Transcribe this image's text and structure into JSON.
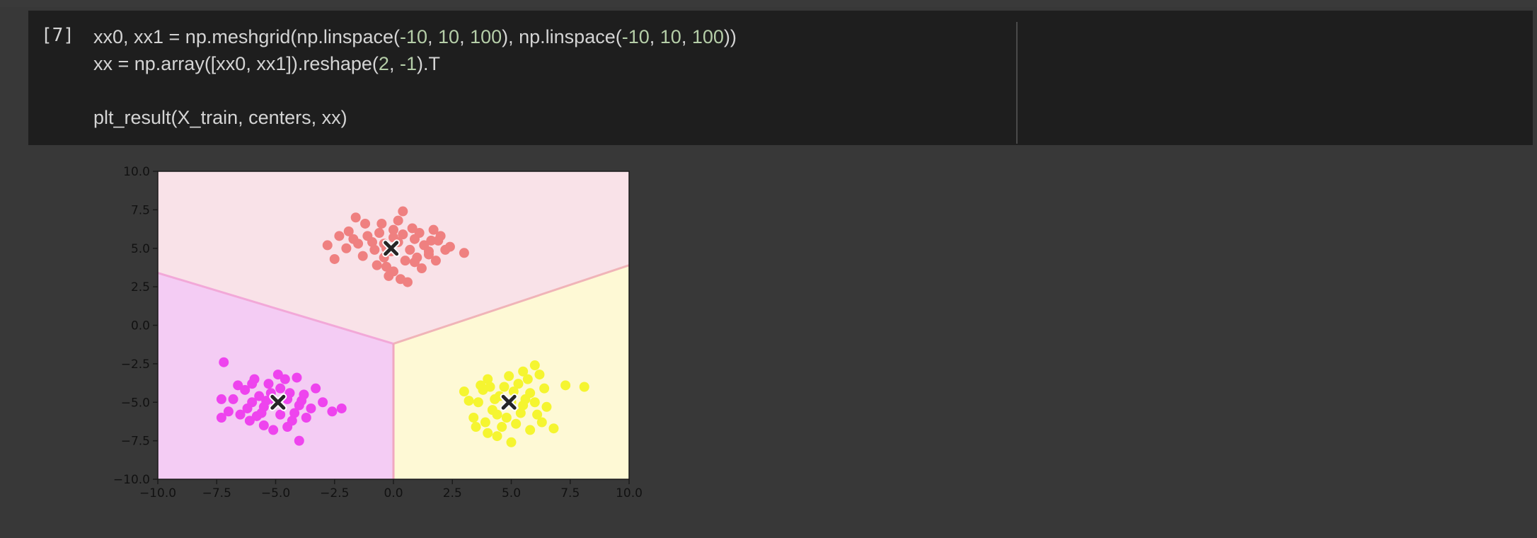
{
  "cell": {
    "execution_count": "[7]",
    "code_lines": [
      [
        [
          "xx0, xx1 = np.meshgrid(np.linspace(",
          ""
        ],
        [
          "-10",
          "num"
        ],
        [
          ", ",
          ""
        ],
        [
          "10",
          "num"
        ],
        [
          ", ",
          ""
        ],
        [
          "100",
          "num"
        ],
        [
          "), np.linspace(",
          ""
        ],
        [
          "-10",
          "num"
        ],
        [
          ", ",
          ""
        ],
        [
          "10",
          "num"
        ],
        [
          ", ",
          ""
        ],
        [
          "100",
          "num"
        ],
        [
          "))",
          ""
        ]
      ],
      [
        [
          "xx = np.array([xx0, xx1]).reshape(",
          ""
        ],
        [
          "2",
          "num"
        ],
        [
          ", ",
          ""
        ],
        [
          "-1",
          "num"
        ],
        [
          ").T",
          ""
        ]
      ],
      [],
      [
        [
          "plt_result(X_train, centers, xx)",
          ""
        ]
      ]
    ]
  },
  "chart_data": {
    "type": "scatter",
    "title": "",
    "xlabel": "",
    "ylabel": "",
    "xlim": [
      -10,
      10
    ],
    "ylim": [
      -10,
      10
    ],
    "xticks": [
      "−10.0",
      "−7.5",
      "−5.0",
      "−2.5",
      "0.0",
      "2.5",
      "5.0",
      "7.5",
      "10.0"
    ],
    "xtick_values": [
      -10,
      -7.5,
      -5,
      -2.5,
      0,
      2.5,
      5,
      7.5,
      10
    ],
    "yticks": [
      "10.0",
      "7.5",
      "5.0",
      "2.5",
      "0.0",
      "−2.5",
      "−5.0",
      "−7.5",
      "−10.0"
    ],
    "ytick_values": [
      10,
      7.5,
      5,
      2.5,
      0,
      -2.5,
      -5,
      -7.5,
      -10
    ],
    "grid": false,
    "regions": [
      {
        "color": "#f9e2e8",
        "polygon": [
          [
            -10,
            10
          ],
          [
            10,
            10
          ],
          [
            10,
            3.9
          ],
          [
            0,
            -1.2
          ],
          [
            -10,
            3.4
          ]
        ]
      },
      {
        "color": "#f4ccf4",
        "polygon": [
          [
            -10,
            3.4
          ],
          [
            0,
            -1.2
          ],
          [
            0,
            -10
          ],
          [
            -10,
            -10
          ]
        ]
      },
      {
        "color": "#fef9d5",
        "polygon": [
          [
            0,
            -1.2
          ],
          [
            10,
            3.9
          ],
          [
            10,
            -10
          ],
          [
            0,
            -10
          ]
        ]
      }
    ],
    "boundaries": [
      {
        "color": "#f2a8d8",
        "points": [
          [
            -10,
            3.4
          ],
          [
            0,
            -1.2
          ]
        ]
      },
      {
        "color": "#f0b4b8",
        "points": [
          [
            0,
            -1.2
          ],
          [
            10,
            3.9
          ]
        ]
      },
      {
        "color": "#f0a8c0",
        "points": [
          [
            0,
            -1.2
          ],
          [
            0,
            -10
          ]
        ]
      }
    ],
    "series": [
      {
        "color": "#ef8080",
        "points": [
          [
            -0.3,
            5.0
          ],
          [
            0.2,
            5.4
          ],
          [
            -0.8,
            4.9
          ],
          [
            0.9,
            5.6
          ],
          [
            -1.5,
            5.3
          ],
          [
            1.5,
            4.8
          ],
          [
            0.5,
            4.2
          ],
          [
            -0.4,
            4.4
          ],
          [
            1.3,
            5.2
          ],
          [
            -1.1,
            5.8
          ],
          [
            0.0,
            6.2
          ],
          [
            0.8,
            6.3
          ],
          [
            -0.6,
            6.0
          ],
          [
            1.9,
            5.5
          ],
          [
            2.2,
            4.9
          ],
          [
            -2.0,
            5.0
          ],
          [
            -2.5,
            4.3
          ],
          [
            -2.8,
            5.2
          ],
          [
            0.0,
            3.5
          ],
          [
            0.3,
            3.0
          ],
          [
            -0.2,
            3.2
          ],
          [
            0.6,
            2.8
          ],
          [
            1.8,
            4.2
          ],
          [
            1.5,
            4.6
          ],
          [
            -1.3,
            4.5
          ],
          [
            -0.9,
            5.4
          ],
          [
            0.4,
            5.9
          ],
          [
            1.0,
            4.4
          ],
          [
            -0.3,
            3.8
          ],
          [
            2.0,
            5.8
          ],
          [
            0.4,
            7.4
          ],
          [
            -1.6,
            7.0
          ],
          [
            -0.5,
            6.6
          ],
          [
            -1.9,
            6.1
          ],
          [
            3.0,
            4.7
          ],
          [
            1.1,
            6.0
          ],
          [
            -0.1,
            4.8
          ],
          [
            0.7,
            4.9
          ],
          [
            -1.7,
            5.6
          ],
          [
            1.6,
            5.5
          ],
          [
            2.4,
            5.1
          ],
          [
            0.0,
            5.7
          ],
          [
            -0.7,
            3.9
          ],
          [
            1.2,
            3.7
          ],
          [
            -1.2,
            6.6
          ],
          [
            0.9,
            4.1
          ],
          [
            -2.3,
            5.8
          ],
          [
            1.7,
            6.2
          ],
          [
            0.2,
            6.8
          ],
          [
            -0.4,
            5.3
          ]
        ]
      },
      {
        "color": "#ee44ee",
        "points": [
          [
            -5.0,
            -5.0
          ],
          [
            -4.5,
            -4.8
          ],
          [
            -5.5,
            -5.3
          ],
          [
            -4.0,
            -5.2
          ],
          [
            -6.0,
            -5.0
          ],
          [
            -5.2,
            -4.4
          ],
          [
            -4.8,
            -5.8
          ],
          [
            -3.8,
            -4.5
          ],
          [
            -6.3,
            -4.2
          ],
          [
            -5.8,
            -5.9
          ],
          [
            -4.3,
            -6.2
          ],
          [
            -6.8,
            -4.8
          ],
          [
            -7.0,
            -5.6
          ],
          [
            -7.2,
            -2.4
          ],
          [
            -5.3,
            -3.8
          ],
          [
            -4.6,
            -3.5
          ],
          [
            -6.0,
            -3.8
          ],
          [
            -3.5,
            -5.4
          ],
          [
            -3.0,
            -5.0
          ],
          [
            -2.6,
            -5.6
          ],
          [
            -2.2,
            -5.4
          ],
          [
            -4.0,
            -7.5
          ],
          [
            -5.5,
            -6.5
          ],
          [
            -6.5,
            -5.8
          ],
          [
            -7.3,
            -4.8
          ],
          [
            -3.3,
            -4.1
          ],
          [
            -4.8,
            -4.1
          ],
          [
            -5.7,
            -4.6
          ],
          [
            -4.2,
            -5.7
          ],
          [
            -5.1,
            -6.8
          ],
          [
            -6.2,
            -5.4
          ],
          [
            -3.7,
            -6.0
          ],
          [
            -4.5,
            -6.6
          ],
          [
            -5.9,
            -3.5
          ],
          [
            -6.6,
            -3.9
          ],
          [
            -5.4,
            -4.9
          ],
          [
            -4.4,
            -4.4
          ],
          [
            -3.9,
            -4.9
          ],
          [
            -6.1,
            -6.2
          ],
          [
            -7.3,
            -6.0
          ],
          [
            -4.9,
            -3.2
          ],
          [
            -4.1,
            -3.4
          ],
          [
            -5.6,
            -5.7
          ]
        ]
      },
      {
        "color": "#f5f530",
        "points": [
          [
            5.0,
            -5.0
          ],
          [
            4.5,
            -4.6
          ],
          [
            5.5,
            -5.2
          ],
          [
            4.2,
            -5.5
          ],
          [
            5.8,
            -4.4
          ],
          [
            4.8,
            -6.0
          ],
          [
            3.8,
            -4.2
          ],
          [
            6.1,
            -5.8
          ],
          [
            3.6,
            -5.0
          ],
          [
            5.3,
            -3.8
          ],
          [
            4.0,
            -3.5
          ],
          [
            6.2,
            -3.2
          ],
          [
            6.0,
            -2.6
          ],
          [
            5.5,
            -3.0
          ],
          [
            7.3,
            -3.9
          ],
          [
            8.1,
            -4.0
          ],
          [
            6.8,
            -6.7
          ],
          [
            5.8,
            -6.8
          ],
          [
            5.0,
            -7.6
          ],
          [
            4.4,
            -7.2
          ],
          [
            3.4,
            -6.0
          ],
          [
            3.5,
            -6.6
          ],
          [
            4.6,
            -6.6
          ],
          [
            3.0,
            -4.3
          ],
          [
            4.7,
            -4.0
          ],
          [
            5.6,
            -4.8
          ],
          [
            4.3,
            -4.8
          ],
          [
            6.5,
            -5.3
          ],
          [
            5.2,
            -6.4
          ],
          [
            3.9,
            -6.3
          ],
          [
            6.4,
            -4.1
          ],
          [
            4.9,
            -3.3
          ],
          [
            4.1,
            -4.0
          ],
          [
            5.4,
            -5.7
          ],
          [
            3.7,
            -3.9
          ],
          [
            6.0,
            -5.0
          ],
          [
            4.4,
            -5.8
          ],
          [
            5.7,
            -3.5
          ],
          [
            3.2,
            -4.9
          ],
          [
            4.0,
            -7.0
          ],
          [
            6.3,
            -6.3
          ],
          [
            5.1,
            -4.3
          ]
        ]
      }
    ],
    "centers": [
      [
        -0.1,
        5.0
      ],
      [
        -4.9,
        -5.0
      ],
      [
        4.9,
        -5.0
      ]
    ]
  }
}
